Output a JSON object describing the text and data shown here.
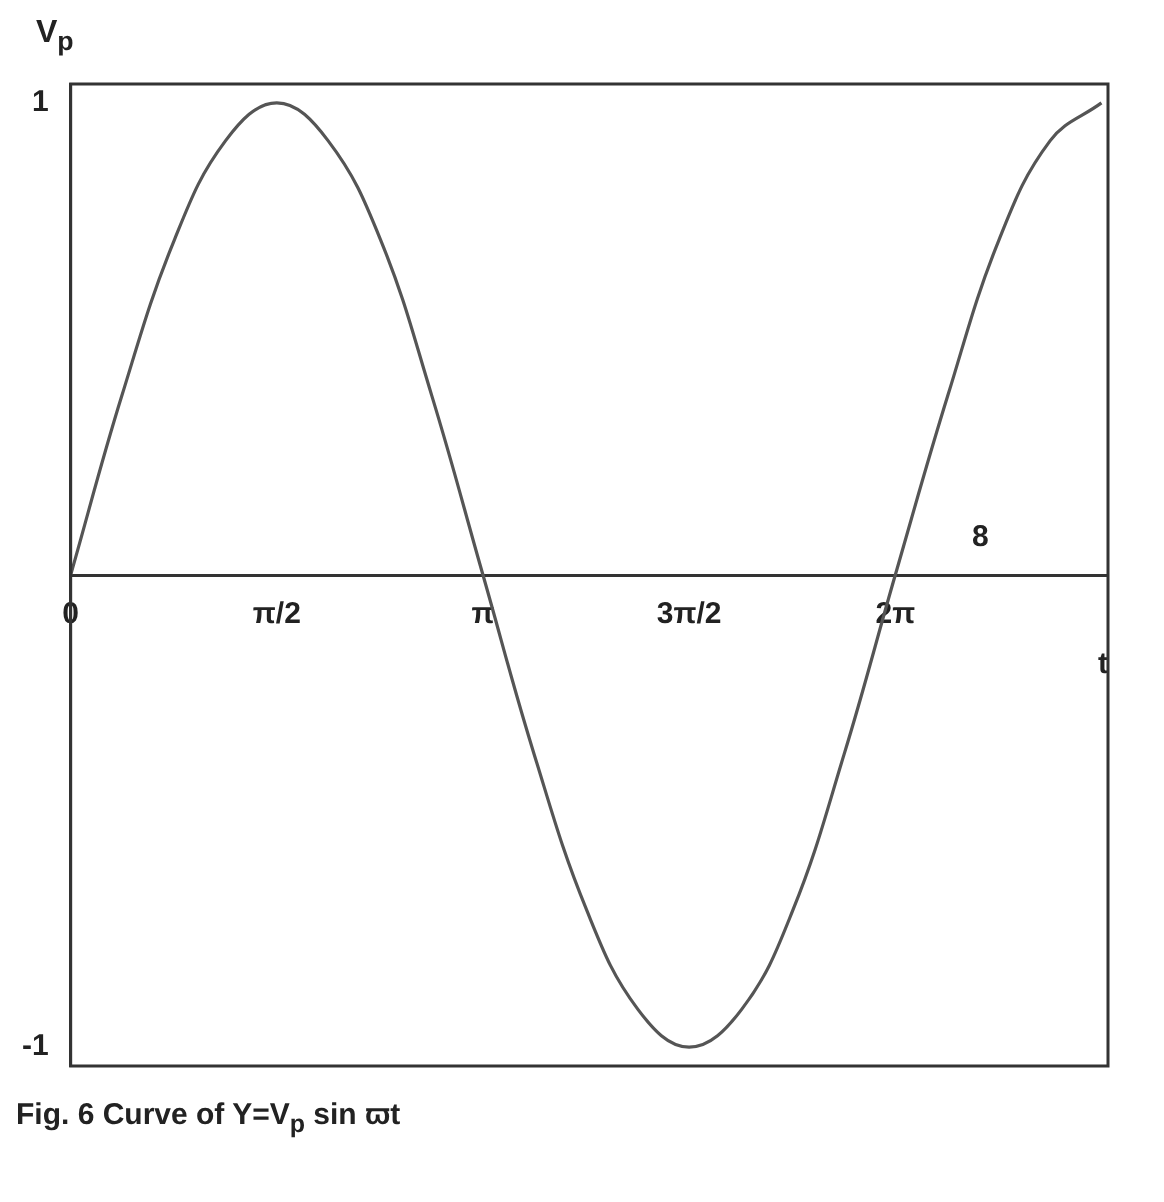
{
  "chart_data": {
    "type": "line",
    "ylabel": "V$_{p}$",
    "xlabel": "t",
    "x": [
      0,
      0.39,
      0.79,
      1.18,
      1.57,
      1.96,
      2.36,
      2.75,
      3.14,
      3.53,
      3.93,
      4.32,
      4.71,
      5.11,
      5.5,
      5.89,
      6.28,
      6.68,
      7.07,
      7.46,
      7.85
    ],
    "series": [
      {
        "color": "#555555",
        "values": [
          0,
          0.38,
          0.71,
          0.92,
          1,
          0.92,
          0.71,
          0.38,
          0,
          -0.38,
          -0.71,
          -0.92,
          -1,
          -0.92,
          -0.71,
          -0.38,
          0,
          0.38,
          0.71,
          0.92,
          1
        ]
      }
    ],
    "xlim": [
      0,
      7.9
    ],
    "ylim": [
      -1.04,
      1.04
    ],
    "xticks": [
      {
        "value": 0,
        "label": "0"
      },
      {
        "value": 1.57,
        "label": "π/2"
      },
      {
        "value": 3.14,
        "label": "π"
      },
      {
        "value": 4.71,
        "label": "3π/2"
      },
      {
        "value": 6.28,
        "label": "2π"
      }
    ],
    "yticks": [
      -1,
      1
    ],
    "grid": false,
    "legend": false,
    "marker": "none",
    "line_style": "solid",
    "annotations": [
      "8",
      "Fig. 6 Curve of Y=V$_{p}$ sin ϖt"
    ]
  }
}
